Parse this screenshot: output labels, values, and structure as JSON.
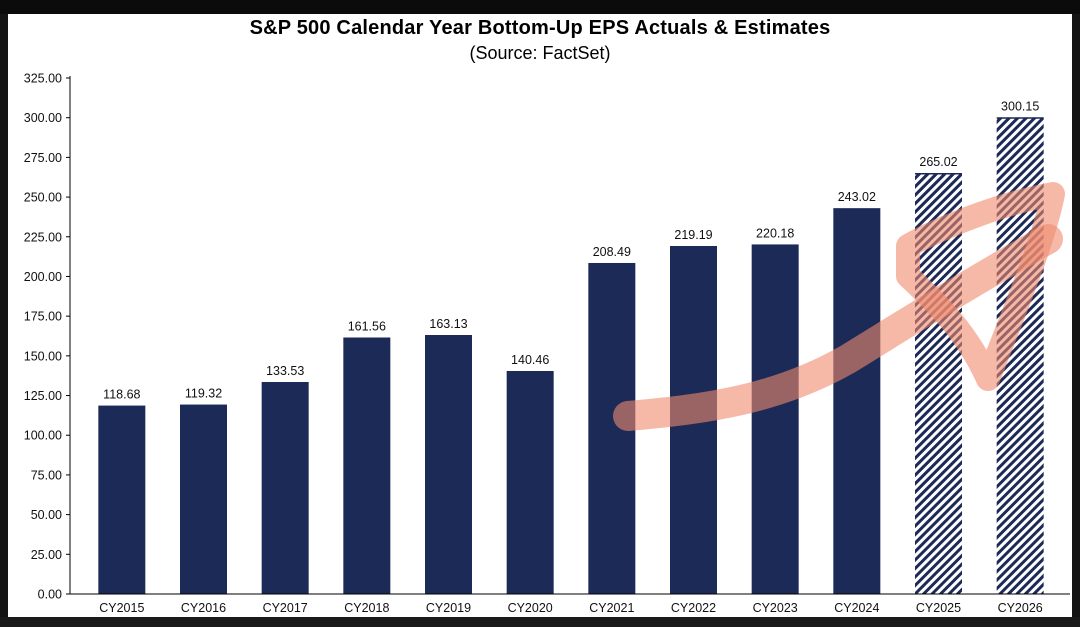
{
  "chart_data": {
    "type": "bar",
    "title": "S&P 500 Calendar Year Bottom-Up EPS Actuals & Estimates",
    "subtitle": "(Source: FactSet)",
    "xlabel": "",
    "ylabel": "",
    "categories": [
      "CY2015",
      "CY2016",
      "CY2017",
      "CY2018",
      "CY2019",
      "CY2020",
      "CY2021",
      "CY2022",
      "CY2023",
      "CY2024",
      "CY2025",
      "CY2026"
    ],
    "values": [
      118.68,
      119.32,
      133.53,
      161.56,
      163.13,
      140.46,
      208.49,
      219.19,
      220.18,
      243.02,
      265.02,
      300.15
    ],
    "value_labels": [
      "118.68",
      "119.32",
      "133.53",
      "161.56",
      "163.13",
      "140.46",
      "208.49",
      "219.19",
      "220.18",
      "243.02",
      "265.02",
      "300.15"
    ],
    "estimate_flags": [
      false,
      false,
      false,
      false,
      false,
      false,
      false,
      false,
      false,
      false,
      true,
      true
    ],
    "ylim": [
      0,
      325
    ],
    "yticks": [
      0,
      25,
      50,
      75,
      100,
      125,
      150,
      175,
      200,
      225,
      250,
      275,
      300,
      325
    ],
    "ytick_labels": [
      "0.00",
      "25.00",
      "50.00",
      "75.00",
      "100.00",
      "125.00",
      "150.00",
      "175.00",
      "200.00",
      "225.00",
      "250.00",
      "275.00",
      "300.00",
      "325.00"
    ],
    "grid": false,
    "legend": "none",
    "colors": {
      "actual": "#1b2a56",
      "estimate_stripe": "#1b2a56",
      "estimate_background": "#ffffff",
      "axis": "#000000",
      "annotation_arrow": "#f08a6e"
    },
    "annotation": "hand-drawn-upward-arrow"
  }
}
